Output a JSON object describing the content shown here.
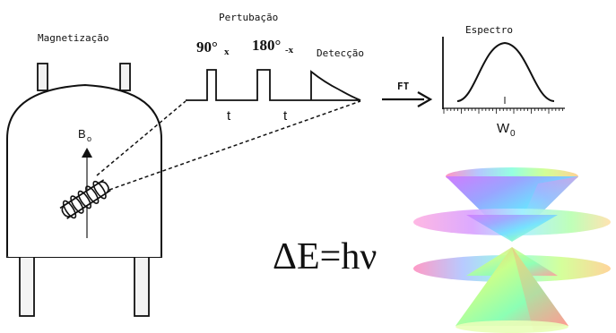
{
  "labels": {
    "magnetization": "Magnetização",
    "perturbation": "Pertubação",
    "detection": "Detecção",
    "spectrum": "Espectro",
    "ft": "FT",
    "b0_main": "B",
    "b0_sub": "o",
    "w0_main": "W",
    "w0_sub": "0",
    "pulse1_main": "90°",
    "pulse1_sub": "x",
    "pulse2_main": "180°",
    "pulse2_sub": "-x",
    "delay1": "t",
    "delay2": "t",
    "equation": "ΔE=hν"
  },
  "colors": {
    "line": "#111111",
    "magnet_fill": "#ffffff",
    "leg_fill": "#f4f4f4"
  },
  "icons": {
    "magnet": "nmr-magnet-icon",
    "coil": "rf-coil-icon",
    "cone": "energy-cone-icon"
  }
}
